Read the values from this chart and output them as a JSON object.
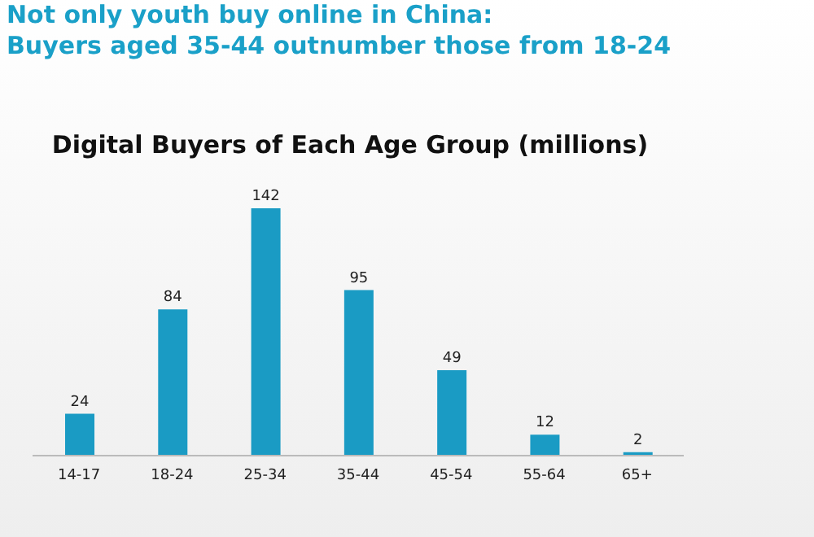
{
  "chart_data": {
    "type": "bar",
    "title": "Not only youth buy online in China:\nBuyers aged 35-44 outnumber those from 18-24",
    "subtitle": "Digital Buyers of Each Age Group (millions)",
    "categories": [
      "14-17",
      "18-24",
      "25-34",
      "35-44",
      "45-54",
      "55-64",
      "65+"
    ],
    "values": [
      24,
      84,
      142,
      95,
      49,
      12,
      2
    ],
    "color": "#1a9bc4",
    "data_labels": true,
    "grid": false,
    "legend": false
  }
}
